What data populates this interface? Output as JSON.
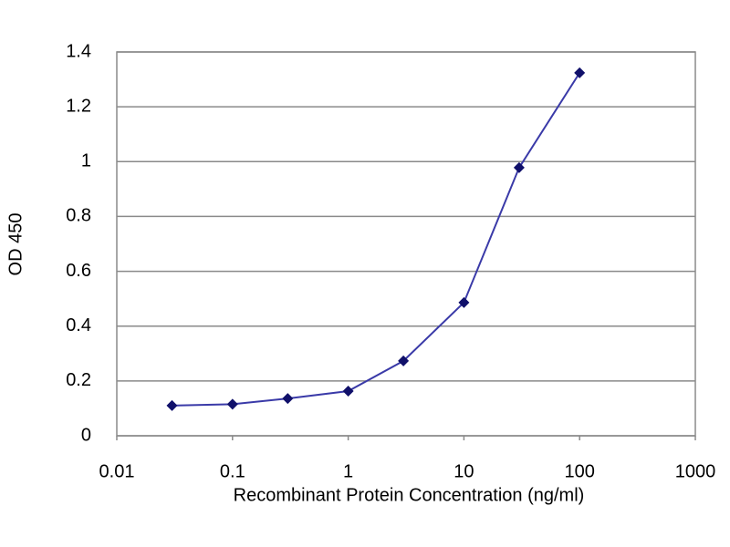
{
  "chart_data": {
    "type": "line",
    "x_label": "Recombinant Protein Concentration (ng/ml)",
    "y_label": "OD 450",
    "x": [
      0.03,
      0.1,
      0.3,
      1,
      3,
      10,
      30,
      100
    ],
    "series": [
      {
        "name": "OD 450",
        "color": "#3a3aa8",
        "marker_color": "#10106a",
        "values": [
          0.11,
          0.115,
          0.136,
          0.163,
          0.273,
          0.486,
          0.978,
          1.324
        ]
      }
    ],
    "xlim": [
      0.01,
      1000
    ],
    "xticks": [
      0.01,
      0.1,
      1,
      10,
      100,
      1000
    ],
    "xscale": "log",
    "ylim": [
      0,
      1.4
    ],
    "yticks": [
      0,
      0.2,
      0.4,
      0.6,
      0.8,
      1,
      1.2,
      1.4
    ],
    "grid": true
  }
}
